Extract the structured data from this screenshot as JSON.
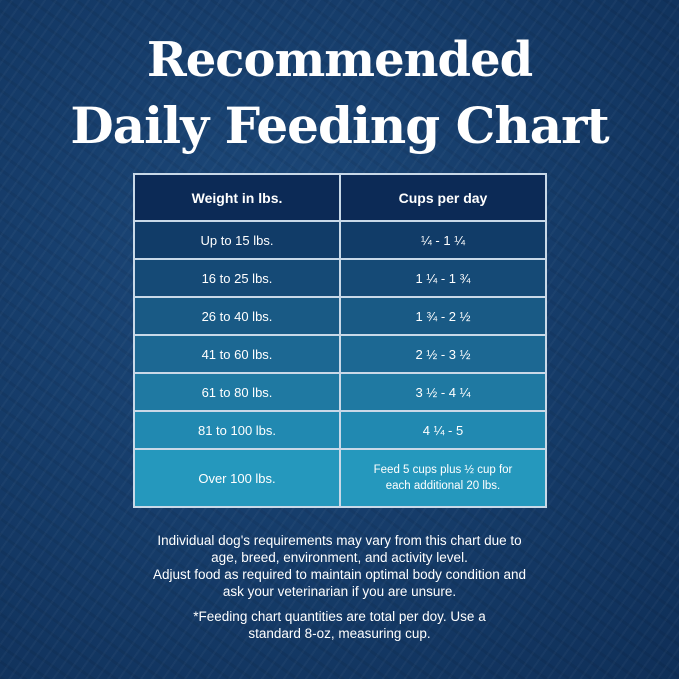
{
  "title": {
    "line1": "Recommended",
    "line2": "Daily Feeding Chart"
  },
  "table": {
    "headers": [
      "Weight in lbs.",
      "Cups per day"
    ],
    "rows": [
      {
        "weight": "Up to 15 lbs.",
        "cups": "¼  - 1 ¼"
      },
      {
        "weight": "16 to 25 lbs.",
        "cups": "1 ¼  - 1 ¾"
      },
      {
        "weight": "26 to 40 lbs.",
        "cups": "1 ¾  - 2 ½"
      },
      {
        "weight": "41 to 60 lbs.",
        "cups": "2 ½  - 3 ½"
      },
      {
        "weight": "61 to 80 lbs.",
        "cups": "3 ½  - 4 ¼"
      },
      {
        "weight": "81 to 100 lbs.",
        "cups": "4 ¼  - 5"
      },
      {
        "weight": "Over 100 lbs.",
        "cups_line1": "Feed 5 cups plus ½ cup for",
        "cups_line2": "each additional 20 lbs."
      }
    ]
  },
  "notes": {
    "disclaimer": [
      "Individual dog's requirements may vary from this chart due to",
      "age, breed, environment, and activity level.",
      "Adjust food as required to maintain optimal body condition and",
      "ask your veterinarian if you are unsure."
    ],
    "footnote": [
      "*Feeding chart quantities are total per doy. Use a",
      "standard 8-oz, measuring cup."
    ]
  },
  "colors": {
    "header": "#0c2a56",
    "row_top": "#113c68",
    "row_bottom": "#2598bd",
    "border": "#c9d9e8"
  }
}
